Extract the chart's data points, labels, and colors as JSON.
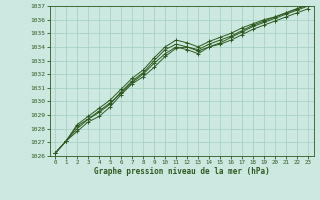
{
  "title": "Graphe pression niveau de la mer (hPa)",
  "background_color": "#cde8e0",
  "grid_color": "#9ecfbf",
  "line_color": "#2d5a1e",
  "xlim": [
    -0.5,
    23.5
  ],
  "ylim": [
    1026,
    1037
  ],
  "yticks": [
    1026,
    1027,
    1028,
    1029,
    1030,
    1031,
    1032,
    1033,
    1034,
    1035,
    1036,
    1037
  ],
  "xticks": [
    0,
    1,
    2,
    3,
    4,
    5,
    6,
    7,
    8,
    9,
    10,
    11,
    12,
    13,
    14,
    15,
    16,
    17,
    18,
    19,
    20,
    21,
    22,
    23
  ],
  "lines": [
    [
      1026.2,
      1027.1,
      1027.8,
      1028.5,
      1028.9,
      1029.6,
      1030.5,
      1031.3,
      1031.8,
      1032.5,
      1033.3,
      1033.9,
      1034.0,
      1033.7,
      1034.0,
      1034.2,
      1034.5,
      1034.9,
      1035.3,
      1035.6,
      1035.9,
      1036.2,
      1036.5,
      1036.8
    ],
    [
      1026.2,
      1027.1,
      1028.2,
      1028.7,
      1029.3,
      1029.9,
      1030.6,
      1031.4,
      1032.0,
      1032.8,
      1033.5,
      1034.0,
      1033.8,
      1033.5,
      1034.0,
      1034.3,
      1034.7,
      1035.1,
      1035.5,
      1035.8,
      1036.1,
      1036.4,
      1036.7,
      1037.0
    ],
    [
      1026.2,
      1027.1,
      1028.3,
      1028.9,
      1029.5,
      1030.1,
      1030.9,
      1031.7,
      1032.3,
      1033.2,
      1034.0,
      1034.5,
      1034.3,
      1034.0,
      1034.4,
      1034.7,
      1035.0,
      1035.4,
      1035.7,
      1036.0,
      1036.2,
      1036.5,
      1036.8,
      1037.1
    ],
    [
      1026.2,
      1027.1,
      1028.0,
      1028.7,
      1029.2,
      1029.8,
      1030.7,
      1031.5,
      1032.1,
      1033.0,
      1033.8,
      1034.2,
      1034.0,
      1033.8,
      1034.2,
      1034.5,
      1034.8,
      1035.2,
      1035.6,
      1035.9,
      1036.2,
      1036.5,
      1036.8,
      1037.1
    ]
  ]
}
